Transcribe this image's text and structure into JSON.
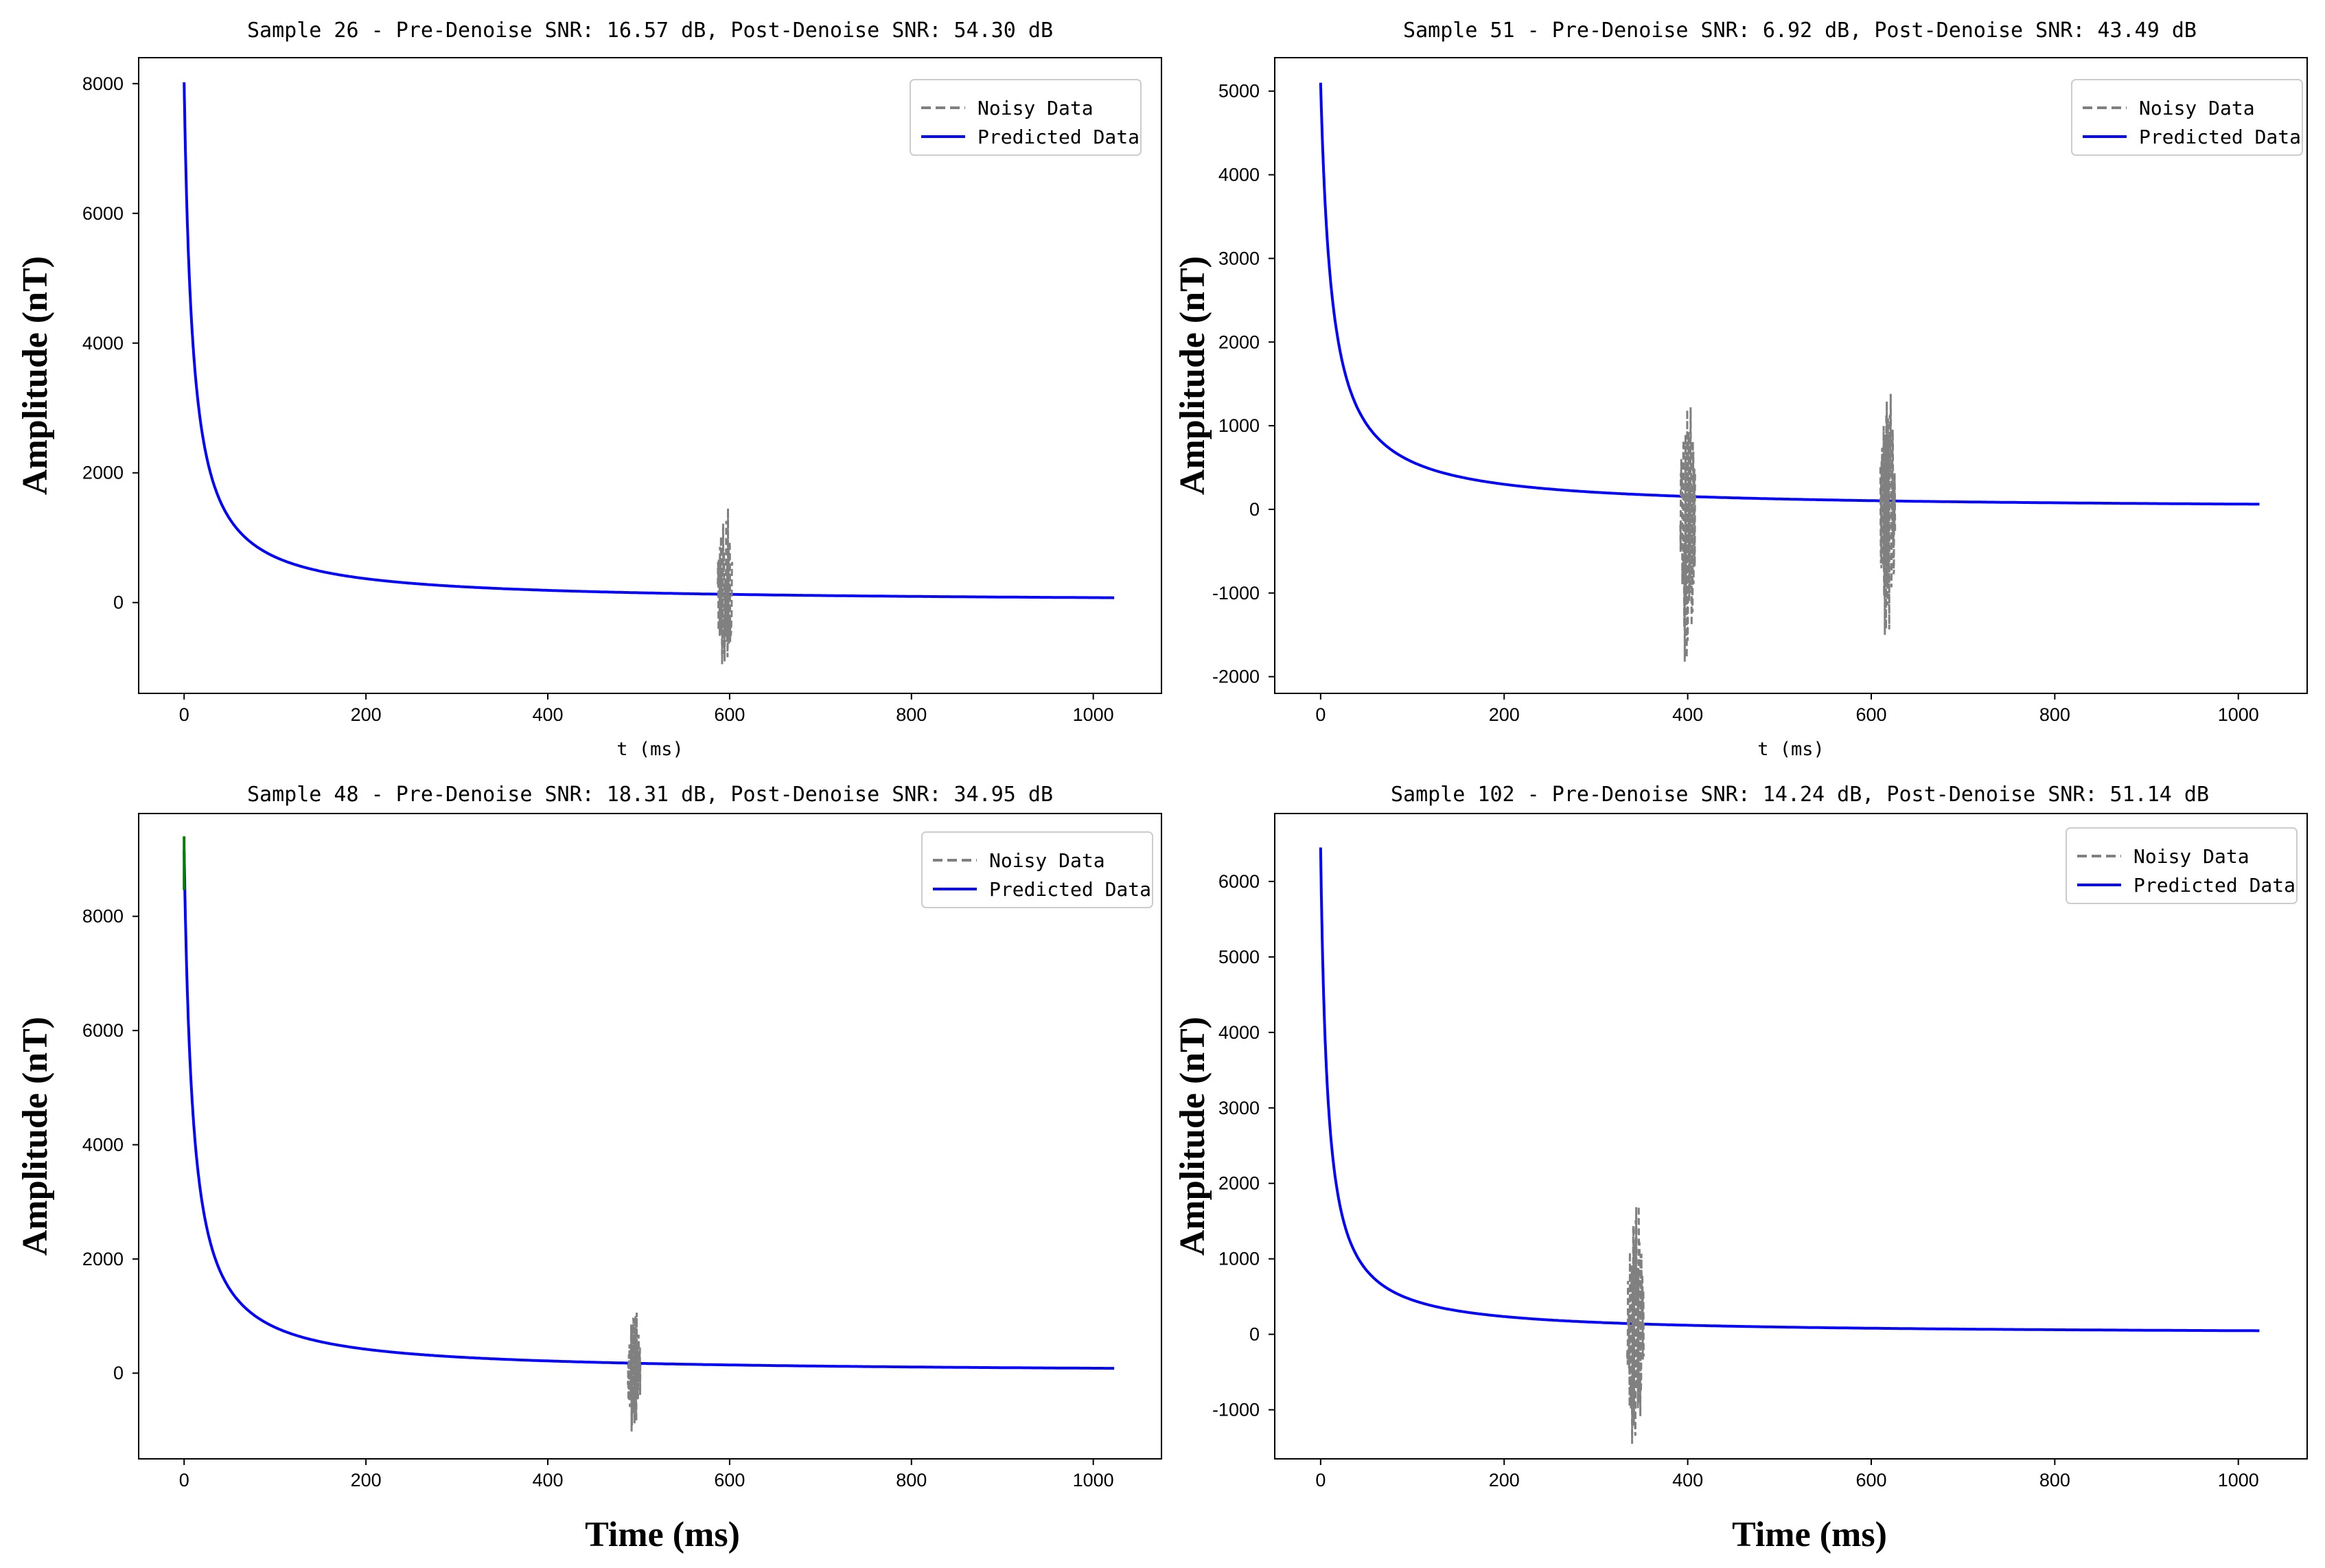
{
  "figure": {
    "background": "#ffffff",
    "noisy_color": "#808080",
    "predicted_color": "#0000ff",
    "true_color": "#008000"
  },
  "chart_data": [
    {
      "type": "line",
      "title": "Sample 26 - Pre-Denoise SNR: 16.57 dB, Post-Denoise SNR: 54.30 dB",
      "xlabel": "t (ms)",
      "ylabel": "Amplitude (nT)",
      "xlim": [
        -50,
        1075
      ],
      "ylim": [
        -1400,
        8400
      ],
      "xticks": [
        0,
        200,
        400,
        600,
        800,
        1000
      ],
      "yticks": [
        0,
        2000,
        4000,
        6000,
        8000
      ],
      "legend": {
        "position": "top-right",
        "entries": [
          "Noisy Data",
          "Predicted Data"
        ]
      },
      "series": [
        {
          "name": "Predicted Data",
          "kind": "decay",
          "x_range": [
            0,
            1023
          ],
          "peak": 8020,
          "tau": 0.026
        },
        {
          "name": "Noisy Data",
          "kind": "bursts",
          "bursts": [
            {
              "center": 595,
              "width": 16,
              "min": -950,
              "max": 1450
            }
          ]
        }
      ]
    },
    {
      "type": "line",
      "title": "Sample 51 - Pre-Denoise SNR: 6.92 dB, Post-Denoise SNR: 43.49 dB",
      "xlabel": "t (ms)",
      "ylabel": "Amplitude (nT)",
      "xlim": [
        -50,
        1075
      ],
      "ylim": [
        -2200,
        5400
      ],
      "xticks": [
        0,
        200,
        400,
        600,
        800,
        1000
      ],
      "yticks": [
        -2000,
        -1000,
        0,
        1000,
        2000,
        3000,
        4000,
        5000
      ],
      "legend": {
        "position": "top-right",
        "entries": [
          "Noisy Data",
          "Predicted Data"
        ]
      },
      "series": [
        {
          "name": "Predicted Data",
          "kind": "decay",
          "x_range": [
            0,
            1023
          ],
          "peak": 5100,
          "tau": 0.02
        },
        {
          "name": "Noisy Data",
          "kind": "bursts",
          "bursts": [
            {
              "center": 400,
              "width": 16,
              "min": -1820,
              "max": 1220
            },
            {
              "center": 618,
              "width": 16,
              "min": -1500,
              "max": 1380
            }
          ]
        }
      ]
    },
    {
      "type": "line",
      "title": "Sample 48 - Pre-Denoise SNR: 18.31 dB, Post-Denoise SNR: 34.95 dB",
      "xlabel": "Time (ms)",
      "ylabel": "Amplitude (nT)",
      "xlim": [
        -50,
        1075
      ],
      "ylim": [
        -1500,
        9800
      ],
      "xticks": [
        0,
        200,
        400,
        600,
        800,
        1000
      ],
      "yticks": [
        0,
        2000,
        4000,
        6000,
        8000
      ],
      "legend": {
        "position": "top-right",
        "entries": [
          "Noisy Data",
          "Predicted Data"
        ]
      },
      "series": [
        {
          "name": "Predicted Data",
          "kind": "decay",
          "x_range": [
            0,
            1023
          ],
          "peak": 9150,
          "tau": 0.026
        },
        {
          "name": "True Data",
          "kind": "spike",
          "x": 0,
          "peak": 9400
        },
        {
          "name": "Noisy Data",
          "kind": "bursts",
          "bursts": [
            {
              "center": 495,
              "width": 14,
              "min": -1020,
              "max": 1060
            }
          ]
        }
      ]
    },
    {
      "type": "line",
      "title": "Sample 102 - Pre-Denoise SNR: 14.24 dB, Post-Denoise SNR: 51.14 dB",
      "xlabel": "Time (ms)",
      "ylabel": "Amplitude (nT)",
      "xlim": [
        -50,
        1075
      ],
      "ylim": [
        -1650,
        6900
      ],
      "xticks": [
        0,
        200,
        400,
        600,
        800,
        1000
      ],
      "yticks": [
        -1000,
        0,
        1000,
        2000,
        3000,
        4000,
        5000,
        6000
      ],
      "legend": {
        "position": "top-right",
        "entries": [
          "Noisy Data",
          "Predicted Data"
        ]
      },
      "series": [
        {
          "name": "Predicted Data",
          "kind": "decay",
          "x_range": [
            0,
            1023
          ],
          "peak": 6450,
          "tau": 0.033
        },
        {
          "name": "Noisy Data",
          "kind": "bursts",
          "bursts": [
            {
              "center": 343,
              "width": 18,
              "min": -1450,
              "max": 1700
            }
          ]
        }
      ]
    }
  ]
}
